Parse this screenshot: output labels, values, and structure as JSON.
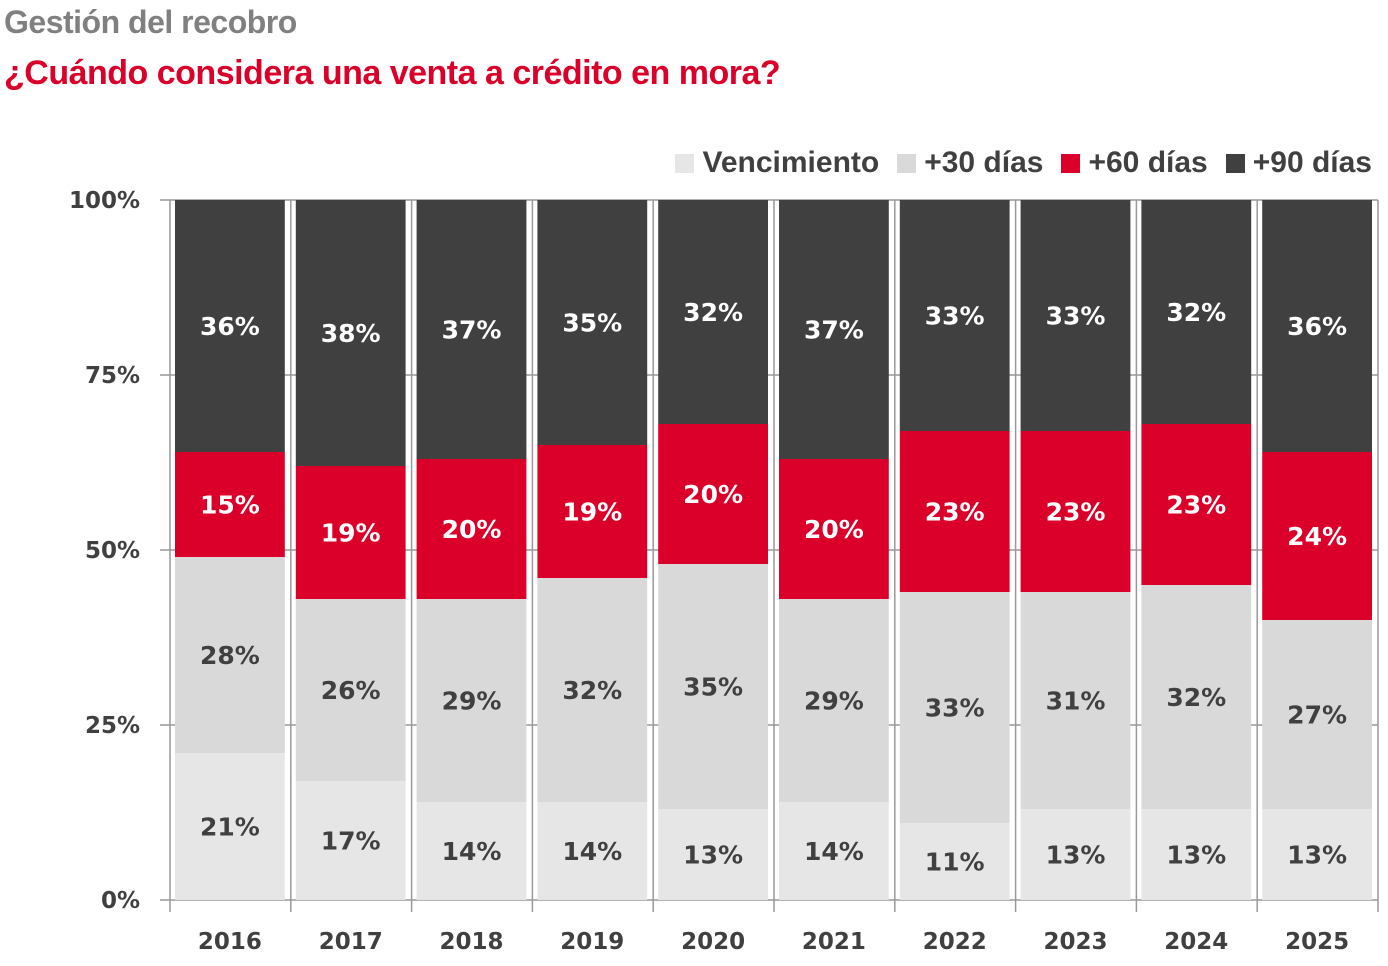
{
  "header": {
    "kicker": "Gestión del recobro",
    "title": "¿Cuándo considera una venta a crédito en mora?"
  },
  "chart_data": {
    "type": "bar",
    "stacked": true,
    "title": "¿Cuándo considera una venta a crédito en mora?",
    "subtitle": "Gestión del recobro",
    "xlabel": "",
    "ylabel": "",
    "ylim": [
      0,
      100
    ],
    "yticks": [
      "0%",
      "25%",
      "50%",
      "75%",
      "100%"
    ],
    "ytick_values": [
      0,
      25,
      50,
      75,
      100
    ],
    "grid": true,
    "legend_position": "top-right",
    "categories": [
      "2016",
      "2017",
      "2018",
      "2019",
      "2020",
      "2021",
      "2022",
      "2023",
      "2024",
      "2025"
    ],
    "series": [
      {
        "name": "Vencimiento",
        "color": "#e6e6e6",
        "label_color": "#404040",
        "values": [
          21,
          17,
          14,
          14,
          13,
          14,
          11,
          13,
          13,
          13
        ]
      },
      {
        "name": "+30 días",
        "color": "#d9d9d9",
        "label_color": "#404040",
        "values": [
          28,
          26,
          29,
          32,
          35,
          29,
          33,
          31,
          32,
          27
        ]
      },
      {
        "name": "+60 días",
        "color": "#da0029",
        "label_color": "#ffffff",
        "values": [
          15,
          19,
          20,
          19,
          20,
          20,
          23,
          23,
          23,
          24
        ]
      },
      {
        "name": "+90 días",
        "color": "#404040",
        "label_color": "#ffffff",
        "values": [
          36,
          38,
          37,
          35,
          32,
          37,
          33,
          33,
          32,
          36
        ]
      }
    ]
  },
  "colors": {
    "axis": "#999999",
    "text": "#404040",
    "accent": "#da0029",
    "kicker": "#808080"
  }
}
